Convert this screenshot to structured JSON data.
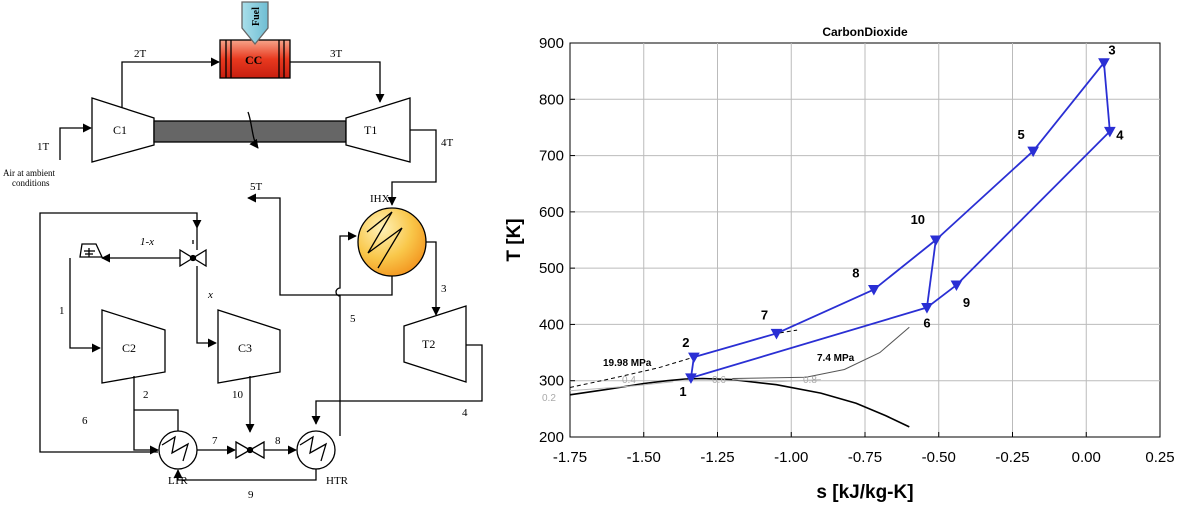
{
  "schematic": {
    "labels": {
      "two_t": "2T",
      "three_t": "3T",
      "one_t": "1T",
      "four_t": "4T",
      "five_t": "5T",
      "fuel": "Fuel",
      "cc": "CC",
      "c1": "C1",
      "t1": "T1",
      "ihx": "IHX",
      "ambient_line1": "Air at ambient",
      "ambient_line2": "conditions",
      "one_minus_x": "1-x",
      "x": "x",
      "c2": "C2",
      "c3": "C3",
      "t2": "T2",
      "ltr": "LTR",
      "htr": "HTR",
      "s1": "1",
      "s2": "2",
      "s3": "3",
      "s4": "4",
      "s5": "5",
      "s6": "6",
      "s7": "7",
      "s8": "8",
      "s9": "9",
      "s10": "10"
    }
  },
  "chart_data": {
    "type": "line",
    "title": "CarbonDioxide",
    "xlabel": "s [kJ/kg-K]",
    "ylabel": "T [K]",
    "xlim": [
      -1.75,
      0.25
    ],
    "ylim": [
      200,
      900
    ],
    "xticks": [
      "-1.75",
      "-1.50",
      "-1.25",
      "-1.00",
      "-0.75",
      "-0.50",
      "-0.25",
      "0.00",
      "0.25"
    ],
    "yticks": [
      "200",
      "300",
      "400",
      "500",
      "600",
      "700",
      "800",
      "900"
    ],
    "grid": true,
    "states": [
      {
        "label": "1",
        "s": -1.34,
        "T": 305
      },
      {
        "label": "2",
        "s": -1.33,
        "T": 342
      },
      {
        "label": "3",
        "s": 0.06,
        "T": 865
      },
      {
        "label": "4",
        "s": 0.08,
        "T": 743
      },
      {
        "label": "5",
        "s": -0.18,
        "T": 708
      },
      {
        "label": "6",
        "s": -0.54,
        "T": 430
      },
      {
        "label": "7",
        "s": -1.05,
        "T": 384
      },
      {
        "label": "8",
        "s": -0.72,
        "T": 462
      },
      {
        "label": "9",
        "s": -0.44,
        "T": 470
      },
      {
        "label": "10",
        "s": -0.51,
        "T": 550
      }
    ],
    "isobar_labels": [
      "19.98 MPa",
      "7.4 MPa"
    ],
    "quality_labels": [
      "0.2",
      "0.4",
      "0.6",
      "0.8"
    ]
  }
}
